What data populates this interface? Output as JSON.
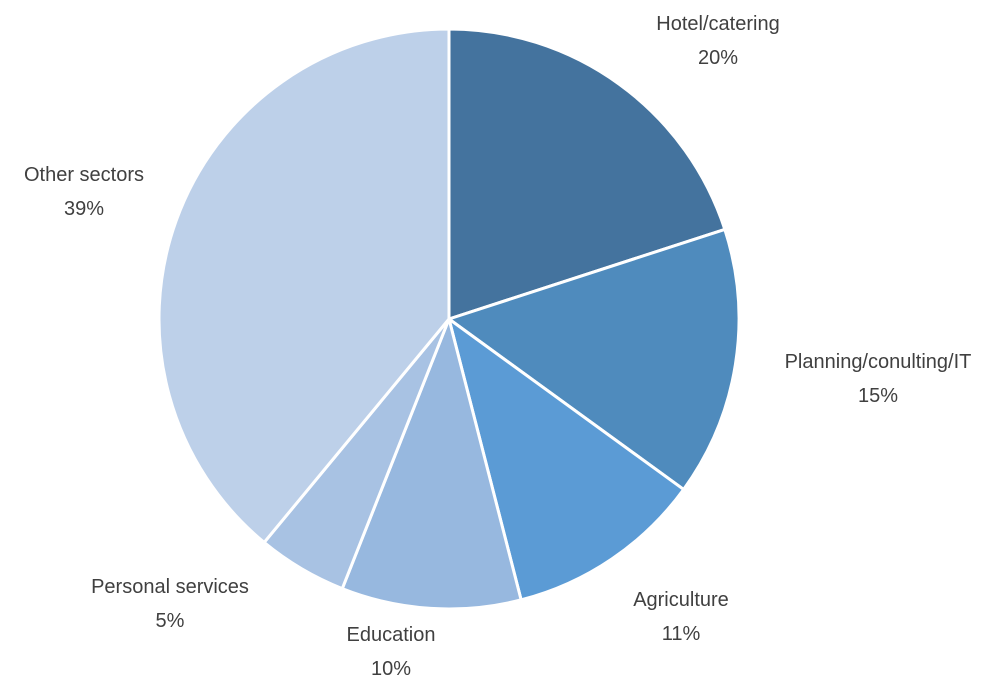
{
  "chart_data": {
    "type": "pie",
    "title": "",
    "legend": "none",
    "start_angle_deg": 0,
    "direction": "clockwise",
    "slices": [
      {
        "label": "Hotel/catering",
        "value": 20,
        "value_label": "20%",
        "color": "#44739e"
      },
      {
        "label": "Planning/conulting/IT",
        "value": 15,
        "value_label": "15%",
        "color": "#4f8bbd"
      },
      {
        "label": "Agriculture",
        "value": 11,
        "value_label": "11%",
        "color": "#5b9bd5"
      },
      {
        "label": "Education",
        "value": 10,
        "value_label": "10%",
        "color": "#97b8df"
      },
      {
        "label": "Personal services",
        "value": 5,
        "value_label": "5%",
        "color": "#a8c2e3"
      },
      {
        "label": "Other sectors",
        "value": 39,
        "value_label": "39%",
        "color": "#bdd0e9"
      }
    ]
  }
}
